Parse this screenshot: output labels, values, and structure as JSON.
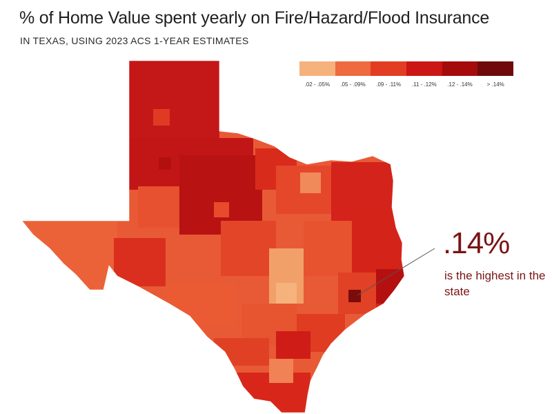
{
  "title": "% of Home Value spent yearly on Fire/Hazard/Flood Insurance",
  "subtitle": "IN TEXAS, USING 2023 ACS 1-YEAR ESTIMATES",
  "legend": [
    {
      "label": ".02 - .05%",
      "color": "#f5b27d"
    },
    {
      "label": ".05 - .09%",
      "color": "#ee6a3f"
    },
    {
      "label": ".09 - .11%",
      "color": "#e23d22"
    },
    {
      "label": ".11 - .12%",
      "color": "#cc1515"
    },
    {
      "label": ".12 - .14%",
      "color": "#a50b0b"
    },
    {
      "label": "> .14%",
      "color": "#6e0a0a"
    }
  ],
  "callout": {
    "value": ".14%",
    "text": "is the highest in the state",
    "color": "#7a1414"
  },
  "map": {
    "region": "Texas",
    "base_color": "#e85a35"
  }
}
